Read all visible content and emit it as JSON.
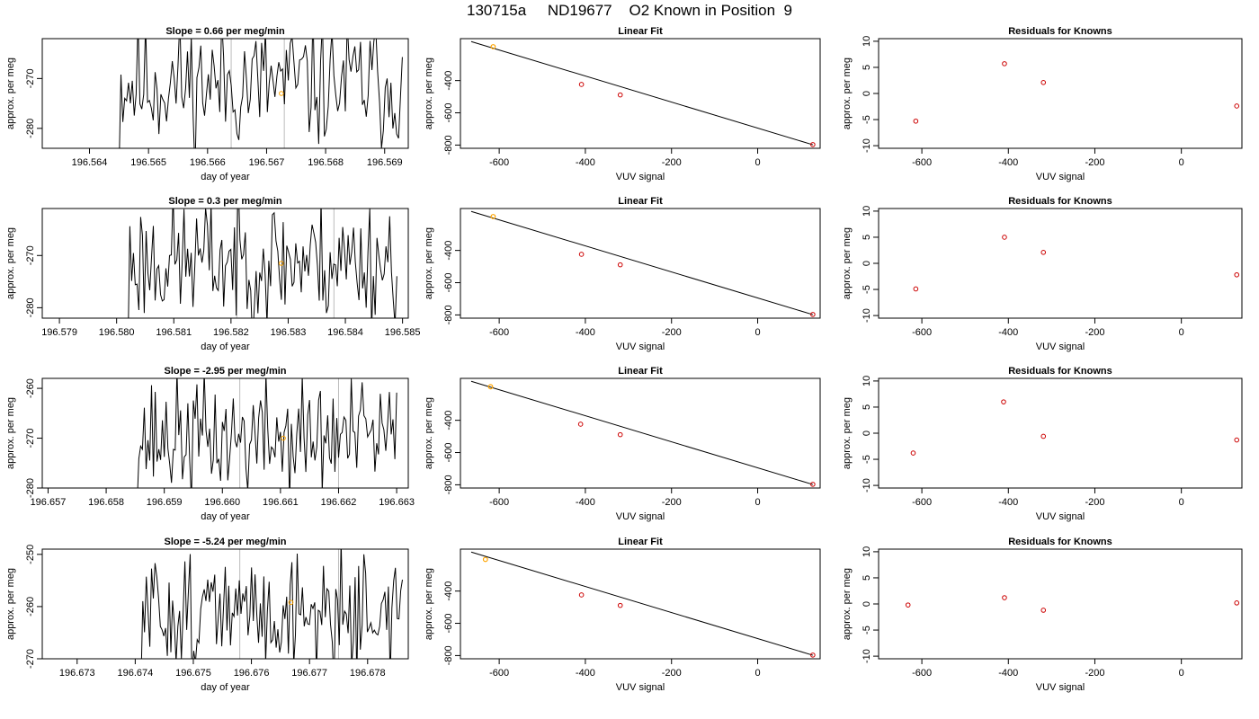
{
  "title": "130715a     ND19677    O2 Known in Position  9",
  "colors": {
    "line": "#000000",
    "point": "#cc0000",
    "highlight": "#ffa500",
    "marker_line": "#bbbbbb"
  },
  "chart_data": [
    {
      "panel_row": 1,
      "type": "line",
      "title": "Slope =  0.66  per meg/min",
      "xlabel": "day of year",
      "ylabel": "approx. per meg",
      "xlim": [
        196.5632,
        196.5694
      ],
      "ylim": [
        -284,
        -262
      ],
      "xticks": [
        196.564,
        196.565,
        196.566,
        196.567,
        196.568,
        196.569
      ],
      "xtick_labels": [
        "196.564",
        "196.565",
        "196.566",
        "196.567",
        "196.568",
        "196.569"
      ],
      "yticks": [
        -270,
        -280
      ],
      "ytick_labels": [
        "-270",
        "-280"
      ],
      "vlines": [
        196.5664,
        196.5673
      ],
      "series": [
        {
          "x_start": 196.5645,
          "x_end": 196.5693,
          "n": 150,
          "seed": 11,
          "mean": -271,
          "amp": 13
        }
      ],
      "highlight_point": [
        196.56725,
        -273
      ]
    },
    {
      "panel_row": 1,
      "type": "scatter",
      "title": "Linear Fit",
      "xlabel": "VUV signal",
      "ylabel": "approx. per meg",
      "xlim": [
        -690,
        145
      ],
      "ylim": [
        -820,
        -140
      ],
      "xticks": [
        -600,
        -400,
        -200,
        0
      ],
      "xtick_labels": [
        "-600",
        "-400",
        "-200",
        "0"
      ],
      "yticks": [
        -400,
        -600,
        -800
      ],
      "ytick_labels": [
        "-400",
        "-600",
        "-800"
      ],
      "fit_line": {
        "x": [
          -665,
          128
        ],
        "y": [
          -158,
          -798
        ]
      },
      "points": [
        {
          "x": -409,
          "y": -424
        },
        {
          "x": -319,
          "y": -489
        },
        {
          "x": 128,
          "y": -797
        }
      ],
      "highlight_point": {
        "x": -614,
        "y": -190
      }
    },
    {
      "panel_row": 1,
      "type": "scatter",
      "title": "Residuals for Knowns",
      "xlabel": "VUV signal",
      "ylabel": "approx. per meg",
      "xlim": [
        -700,
        140
      ],
      "ylim": [
        -10.5,
        10.5
      ],
      "xticks": [
        -600,
        -400,
        -200,
        0
      ],
      "xtick_labels": [
        "-600",
        "-400",
        "-200",
        "0"
      ],
      "yticks": [
        10,
        5,
        0,
        -5,
        -10
      ],
      "ytick_labels": [
        "10",
        "5",
        "0",
        "-5",
        "-10"
      ],
      "points": [
        {
          "x": -614,
          "y": -5.3
        },
        {
          "x": -409,
          "y": 5.7
        },
        {
          "x": -319,
          "y": 2.1
        },
        {
          "x": 128,
          "y": -2.4
        }
      ]
    },
    {
      "panel_row": 2,
      "type": "line",
      "title": "Slope =  0.3  per meg/min",
      "xlabel": "day of year",
      "ylabel": "approx. per meg",
      "xlim": [
        196.5787,
        196.5851
      ],
      "ylim": [
        -282,
        -261
      ],
      "xticks": [
        196.579,
        196.58,
        196.581,
        196.582,
        196.583,
        196.584,
        196.585
      ],
      "xtick_labels": [
        "196.579",
        "196.580",
        "196.581",
        "196.582",
        "196.583",
        "196.584",
        "196.585"
      ],
      "yticks": [
        -270,
        -280
      ],
      "ytick_labels": [
        "-270",
        "-280"
      ],
      "vlines": [
        196.5821,
        196.5838
      ],
      "series": [
        {
          "x_start": 196.5802,
          "x_end": 196.5849,
          "n": 150,
          "seed": 23,
          "mean": -271,
          "amp": 12
        }
      ],
      "highlight_point": [
        196.58288,
        -271.5
      ]
    },
    {
      "panel_row": 2,
      "type": "scatter",
      "title": "Linear Fit",
      "xlabel": "VUV signal",
      "ylabel": "approx. per meg",
      "xlim": [
        -690,
        145
      ],
      "ylim": [
        -820,
        -140
      ],
      "xticks": [
        -600,
        -400,
        -200,
        0
      ],
      "xtick_labels": [
        "-600",
        "-400",
        "-200",
        "0"
      ],
      "yticks": [
        -400,
        -600,
        -800
      ],
      "ytick_labels": [
        "-400",
        "-600",
        "-800"
      ],
      "fit_line": {
        "x": [
          -665,
          128
        ],
        "y": [
          -158,
          -798
        ]
      },
      "points": [
        {
          "x": -409,
          "y": -424
        },
        {
          "x": -319,
          "y": -489
        },
        {
          "x": 128,
          "y": -797
        }
      ],
      "highlight_point": {
        "x": -614,
        "y": -190
      }
    },
    {
      "panel_row": 2,
      "type": "scatter",
      "title": "Residuals for Knowns",
      "xlabel": "VUV signal",
      "ylabel": "approx. per meg",
      "xlim": [
        -700,
        140
      ],
      "ylim": [
        -10.5,
        10.5
      ],
      "xticks": [
        -600,
        -400,
        -200,
        0
      ],
      "xtick_labels": [
        "-600",
        "-400",
        "-200",
        "0"
      ],
      "yticks": [
        10,
        5,
        0,
        -5,
        -10
      ],
      "ytick_labels": [
        "10",
        "5",
        "0",
        "-5",
        "-10"
      ],
      "points": [
        {
          "x": -614,
          "y": -4.9
        },
        {
          "x": -409,
          "y": 5.0
        },
        {
          "x": -319,
          "y": 2.1
        },
        {
          "x": 128,
          "y": -2.2
        }
      ]
    },
    {
      "panel_row": 3,
      "type": "line",
      "title": "Slope =  -2.95  per meg/min",
      "xlabel": "day of year",
      "ylabel": "approx. per meg",
      "xlim": [
        196.6569,
        196.6632
      ],
      "ylim": [
        -280,
        -258
      ],
      "xticks": [
        196.657,
        196.658,
        196.659,
        196.66,
        196.661,
        196.662,
        196.663
      ],
      "xtick_labels": [
        "196.657",
        "196.658",
        "196.659",
        "196.660",
        "196.661",
        "196.662",
        "196.663"
      ],
      "yticks": [
        -260,
        -270,
        -280
      ],
      "ytick_labels": [
        "-260",
        "-270",
        "-280"
      ],
      "vlines": [
        196.6603,
        196.662
      ],
      "series": [
        {
          "x_start": 196.6585,
          "x_end": 196.663,
          "n": 145,
          "seed": 37,
          "mean": -270,
          "amp": 12
        }
      ],
      "highlight_point": [
        196.66105,
        -270
      ]
    },
    {
      "panel_row": 3,
      "type": "scatter",
      "title": "Linear Fit",
      "xlabel": "VUV signal",
      "ylabel": "approx. per meg",
      "xlim": [
        -690,
        145
      ],
      "ylim": [
        -820,
        -140
      ],
      "xticks": [
        -600,
        -400,
        -200,
        0
      ],
      "xtick_labels": [
        "-600",
        "-400",
        "-200",
        "0"
      ],
      "yticks": [
        -400,
        -600,
        -800
      ],
      "ytick_labels": [
        "-400",
        "-600",
        "-800"
      ],
      "fit_line": {
        "x": [
          -665,
          128
        ],
        "y": [
          -158,
          -798
        ]
      },
      "points": [
        {
          "x": -411,
          "y": -424
        },
        {
          "x": -319,
          "y": -489
        },
        {
          "x": 128,
          "y": -797
        }
      ],
      "highlight_point": {
        "x": -620,
        "y": -192
      }
    },
    {
      "panel_row": 3,
      "type": "scatter",
      "title": "Residuals for Knowns",
      "xlabel": "VUV signal",
      "ylabel": "approx. per meg",
      "xlim": [
        -700,
        140
      ],
      "ylim": [
        -10.5,
        10.5
      ],
      "xticks": [
        -600,
        -400,
        -200,
        0
      ],
      "xtick_labels": [
        "-600",
        "-400",
        "-200",
        "0"
      ],
      "yticks": [
        10,
        5,
        0,
        -5,
        -10
      ],
      "ytick_labels": [
        "10",
        "5",
        "0",
        "-5",
        "-10"
      ],
      "points": [
        {
          "x": -620,
          "y": -3.8
        },
        {
          "x": -411,
          "y": 6.0
        },
        {
          "x": -319,
          "y": -0.6
        },
        {
          "x": 128,
          "y": -1.3
        }
      ]
    },
    {
      "panel_row": 4,
      "type": "line",
      "title": "Slope =  -5.24  per meg/min",
      "xlabel": "day of year",
      "ylabel": "approx. per meg",
      "xlim": [
        196.6724,
        196.6787
      ],
      "ylim": [
        -270,
        -249
      ],
      "xticks": [
        196.673,
        196.674,
        196.675,
        196.676,
        196.677,
        196.678
      ],
      "xtick_labels": [
        "196.673",
        "196.674",
        "196.675",
        "196.676",
        "196.677",
        "196.678"
      ],
      "yticks": [
        -250,
        -260,
        -270
      ],
      "ytick_labels": [
        "-250",
        "-260",
        "-270"
      ],
      "vlines": [
        196.6758,
        196.6775
      ],
      "series": [
        {
          "x_start": 196.6741,
          "x_end": 196.6786,
          "n": 150,
          "seed": 51,
          "mean": -261,
          "amp": 11
        }
      ],
      "highlight_point": [
        196.67668,
        -259.2
      ]
    },
    {
      "panel_row": 4,
      "type": "scatter",
      "title": "Linear Fit",
      "xlabel": "VUV signal",
      "ylabel": "approx. per meg",
      "xlim": [
        -690,
        145
      ],
      "ylim": [
        -820,
        -140
      ],
      "xticks": [
        -600,
        -400,
        -200,
        0
      ],
      "xtick_labels": [
        "-600",
        "-400",
        "-200",
        "0"
      ],
      "yticks": [
        -400,
        -600,
        -800
      ],
      "ytick_labels": [
        "-400",
        "-600",
        "-800"
      ],
      "fit_line": {
        "x": [
          -665,
          128
        ],
        "y": [
          -158,
          -798
        ]
      },
      "points": [
        {
          "x": -409,
          "y": -424
        },
        {
          "x": -319,
          "y": -489
        },
        {
          "x": 128,
          "y": -797
        }
      ],
      "highlight_point": {
        "x": -632,
        "y": -204
      }
    },
    {
      "panel_row": 4,
      "type": "scatter",
      "title": "Residuals for Knowns",
      "xlabel": "VUV signal",
      "ylabel": "approx. per meg",
      "xlim": [
        -700,
        140
      ],
      "ylim": [
        -10.5,
        10.5
      ],
      "xticks": [
        -600,
        -400,
        -200,
        0
      ],
      "xtick_labels": [
        "-600",
        "-400",
        "-200",
        "0"
      ],
      "yticks": [
        10,
        5,
        0,
        -5,
        -10
      ],
      "ytick_labels": [
        "10",
        "5",
        "0",
        "-5",
        "-10"
      ],
      "points": [
        {
          "x": -632,
          "y": -0.2
        },
        {
          "x": -409,
          "y": 1.2
        },
        {
          "x": -319,
          "y": -1.2
        },
        {
          "x": 128,
          "y": 0.2
        }
      ]
    }
  ]
}
